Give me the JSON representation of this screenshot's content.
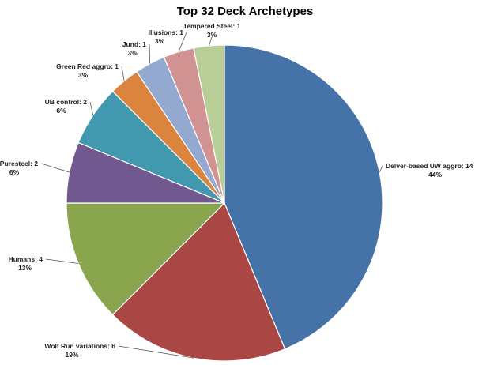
{
  "chart_data": {
    "type": "pie",
    "title": "Top 32 Deck Archetypes",
    "slices": [
      {
        "name": "Delver-based UW aggro",
        "value": 14,
        "pct": "44%",
        "color": "#4572A7"
      },
      {
        "name": "Wolf Run variations",
        "value": 6,
        "pct": "19%",
        "color": "#AA4643"
      },
      {
        "name": "Humans",
        "value": 4,
        "pct": "13%",
        "color": "#89A54E"
      },
      {
        "name": "Puresteel",
        "value": 2,
        "pct": "6%",
        "color": "#71588F"
      },
      {
        "name": "UB control",
        "value": 2,
        "pct": "6%",
        "color": "#4198AF"
      },
      {
        "name": "Green Red aggro",
        "value": 1,
        "pct": "3%",
        "color": "#DB843D"
      },
      {
        "name": "Jund",
        "value": 1,
        "pct": "3%",
        "color": "#93A9CF"
      },
      {
        "name": "Illusions",
        "value": 1,
        "pct": "3%",
        "color": "#D19392"
      },
      {
        "name": "Tempered Steel",
        "value": 1,
        "pct": "3%",
        "color": "#B9CD96"
      }
    ],
    "start_angle_deg": 0,
    "direction": "clockwise",
    "legend": "none",
    "data_labels": "category-value-percent"
  }
}
